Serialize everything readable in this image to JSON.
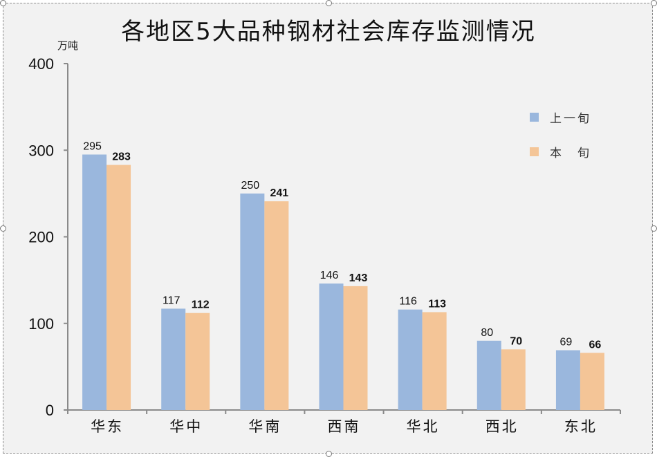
{
  "chart_data": {
    "type": "bar",
    "title": "各地区5大品种钢材社会库存监测情况",
    "ylabel": "万吨",
    "categories": [
      "华东",
      "华中",
      "华南",
      "西南",
      "华北",
      "西北",
      "东北"
    ],
    "series": [
      {
        "name": "上一旬",
        "values": [
          295,
          117,
          250,
          146,
          116,
          80,
          69
        ],
        "color": "#9ab7dd"
      },
      {
        "name": "本　旬",
        "values": [
          283,
          112,
          241,
          143,
          113,
          70,
          66
        ],
        "color": "#f4c597"
      }
    ],
    "ylim": [
      0,
      400
    ],
    "yticks": [
      0,
      100,
      200,
      300,
      400
    ],
    "grid": false,
    "legend": "top-right"
  }
}
